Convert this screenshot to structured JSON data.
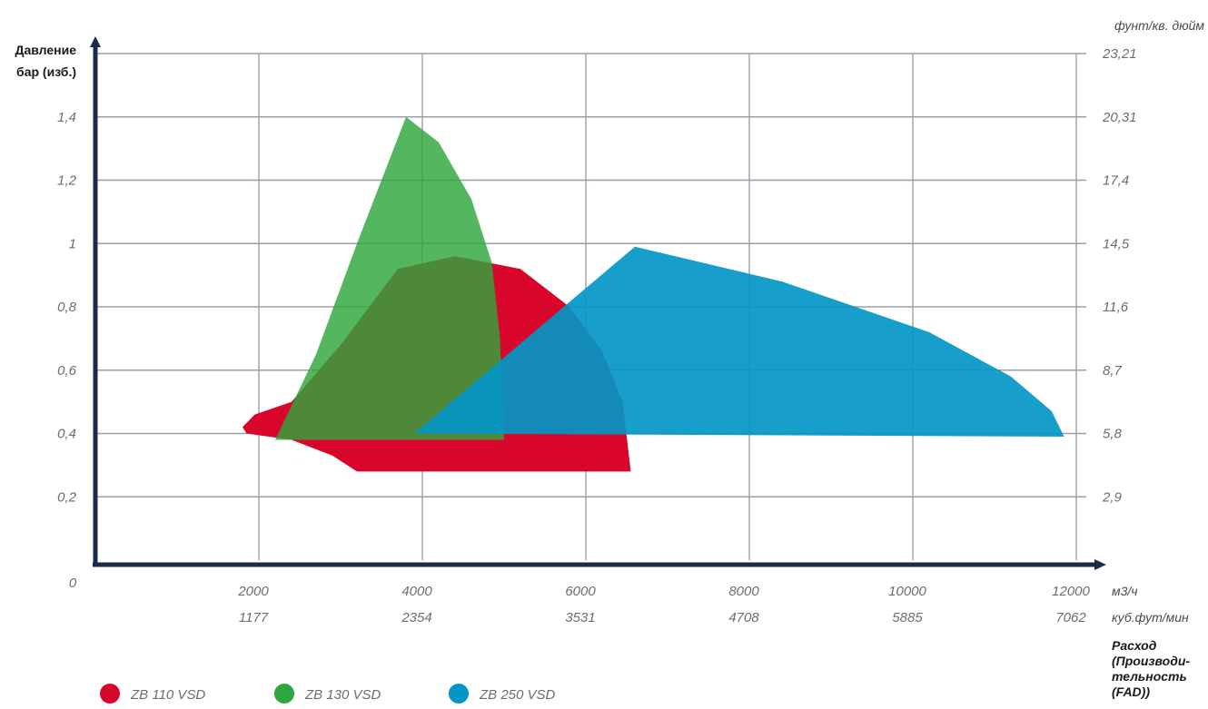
{
  "chart_data": {
    "type": "area",
    "y_label_lines": [
      "Давление",
      "бар (изб.)"
    ],
    "right_unit": "фунт/кв. дюйм",
    "x_unit_primary": "м3/ч",
    "x_unit_secondary": "куб.фут/мин",
    "x_title_lines": [
      "Расход",
      "(Производи-",
      "тельность",
      "(FAD))"
    ],
    "origin_label": "0",
    "xlim": [
      0,
      12000
    ],
    "ylim": [
      0,
      1.6
    ],
    "grid": true,
    "legend_position": "bottom-left",
    "y_ticks": [
      {
        "v": 0.2,
        "left": "0,2",
        "right": "2,9"
      },
      {
        "v": 0.4,
        "left": "0,4",
        "right": "5,8"
      },
      {
        "v": 0.6,
        "left": "0,6",
        "right": "8,7"
      },
      {
        "v": 0.8,
        "left": "0,8",
        "right": "11,6"
      },
      {
        "v": 1.0,
        "left": "1",
        "right": "14,5"
      },
      {
        "v": 1.2,
        "left": "1,2",
        "right": "17,4"
      },
      {
        "v": 1.4,
        "left": "1,4",
        "right": "20,31"
      },
      {
        "v": 1.6,
        "left": "",
        "right": "23,21"
      }
    ],
    "x_ticks": [
      {
        "v": 2000,
        "label": "2000",
        "sub": "1177"
      },
      {
        "v": 4000,
        "label": "4000",
        "sub": "2354"
      },
      {
        "v": 6000,
        "label": "6000",
        "sub": "3531"
      },
      {
        "v": 8000,
        "label": "8000",
        "sub": "4708"
      },
      {
        "v": 10000,
        "label": "10000",
        "sub": "5885"
      },
      {
        "v": 12000,
        "label": "12000",
        "sub": "7062"
      }
    ],
    "series": [
      {
        "name": "ZB 110 VSD",
        "color": "#d9062b",
        "points": [
          [
            1800,
            0.42
          ],
          [
            1950,
            0.46
          ],
          [
            2400,
            0.5
          ],
          [
            3000,
            0.68
          ],
          [
            3700,
            0.92
          ],
          [
            4400,
            0.96
          ],
          [
            5200,
            0.92
          ],
          [
            5800,
            0.8
          ],
          [
            6200,
            0.66
          ],
          [
            6450,
            0.5
          ],
          [
            6550,
            0.28
          ],
          [
            3200,
            0.28
          ],
          [
            2900,
            0.33
          ],
          [
            2400,
            0.38
          ],
          [
            1850,
            0.4
          ]
        ]
      },
      {
        "name": "ZB 130 VSD",
        "color": "#2ea63c",
        "opacity": 0.82,
        "points": [
          [
            2200,
            0.38
          ],
          [
            2700,
            0.65
          ],
          [
            3200,
            1.0
          ],
          [
            3800,
            1.4
          ],
          [
            4200,
            1.32
          ],
          [
            4600,
            1.14
          ],
          [
            4850,
            0.94
          ],
          [
            4950,
            0.7
          ],
          [
            5000,
            0.38
          ]
        ]
      },
      {
        "name": "ZB 250 VSD",
        "color": "#0396c6",
        "opacity": 0.92,
        "points": [
          [
            3900,
            0.4
          ],
          [
            6600,
            0.99
          ],
          [
            8400,
            0.88
          ],
          [
            10200,
            0.72
          ],
          [
            11200,
            0.58
          ],
          [
            11700,
            0.47
          ],
          [
            11850,
            0.39
          ]
        ]
      }
    ]
  }
}
